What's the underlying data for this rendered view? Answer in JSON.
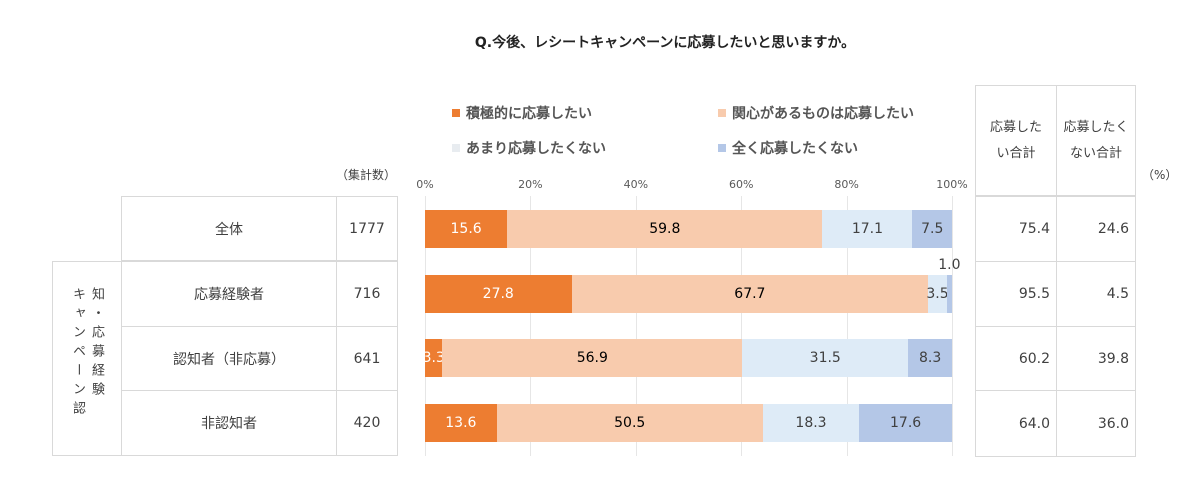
{
  "chart_data": {
    "type": "bar",
    "orientation": "horizontal",
    "stacked": true,
    "title": "Q.今後、レシートキャンペーンに応募したいと思いますか。",
    "xlim": [
      0,
      100
    ],
    "xticks": [
      "0%",
      "20%",
      "40%",
      "60%",
      "80%",
      "100%"
    ],
    "grid": true,
    "legend_placement": "top",
    "series": [
      {
        "name": "積極的に応募したい",
        "color": "#ED7D31",
        "label_color": "#ffffff",
        "values": [
          15.6,
          27.8,
          3.3,
          13.6
        ]
      },
      {
        "name": "関心があるものは応募したい",
        "color": "#F8CBAD",
        "label_color": "#000000",
        "values": [
          59.8,
          67.7,
          56.9,
          50.5
        ]
      },
      {
        "name": "あまり応募したくない",
        "color": "#DEEBF7",
        "label_color": "#404040",
        "values": [
          17.1,
          3.5,
          31.5,
          18.3
        ]
      },
      {
        "name": "全く応募したくない",
        "color": "#B4C7E7",
        "label_color": "#404040",
        "values": [
          7.5,
          1.0,
          8.3,
          17.6
        ]
      }
    ],
    "categories": [
      "全体",
      "応募経験者",
      "認知者（非応募）",
      "非認知者"
    ]
  },
  "table": {
    "count_header": "（集計数）",
    "group_label_a": "知・応募経験",
    "group_label_b": "キャンペーン認",
    "counts": [
      "1777",
      "716",
      "641",
      "420"
    ],
    "right_headers": [
      "応募したい合計",
      "応募したくない合計"
    ],
    "want": [
      "75.4",
      "95.5",
      "60.2",
      "64.0"
    ],
    "notwant": [
      "24.6",
      "4.5",
      "39.8",
      "36.0"
    ],
    "unit": "（%）"
  }
}
